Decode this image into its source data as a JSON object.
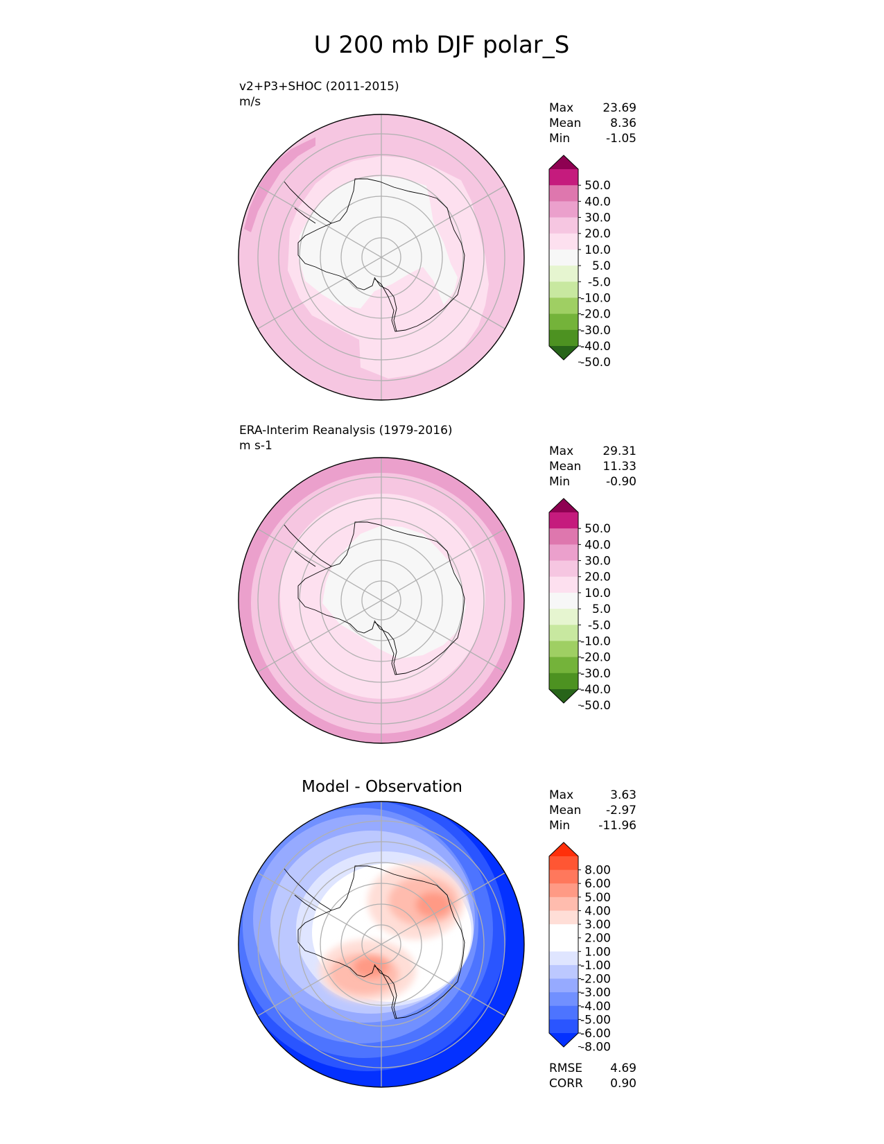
{
  "figure_title": "U 200 mb DJF polar_S",
  "colors": {
    "land_outline": "#000000",
    "grid": "#b0b0b0",
    "pink_scale": [
      "#276419",
      "#4d9221",
      "#7fbc41",
      "#b8e186",
      "#e6f5d0",
      "#f7f7f7",
      "#fde0ef",
      "#f1b6da",
      "#de77ae",
      "#c51b7d",
      "#8e0152"
    ],
    "diff_scale": [
      "#0431ff",
      "#2a55ff",
      "#4d74ff",
      "#7190ff",
      "#96aaff",
      "#bcc8ff",
      "#dfe5ff",
      "#ffffff",
      "#ffded7",
      "#ffbcae",
      "#ff9a85",
      "#ff785c",
      "#ff5633",
      "#ff2f0a"
    ]
  },
  "panels": [
    {
      "id": "test",
      "title_left": "v2+P3+SHOC (2011-2015)",
      "units": "m/s",
      "stats": [
        {
          "label": "Max",
          "value": "23.69"
        },
        {
          "label": "Mean",
          "value": "8.36"
        },
        {
          "label": "Min",
          "value": "-1.05"
        }
      ],
      "colorbar_ticks": [
        "50.0",
        "40.0",
        "30.0",
        "20.0",
        "10.0",
        "5.0",
        "-5.0",
        "-10.0",
        "-20.0",
        "-30.0",
        "-40.0",
        "-50.0"
      ],
      "colorbar_colors_top_to_bottom": [
        "#8e0152",
        "#c51b7d",
        "#de77ae",
        "#eba0cc",
        "#f6c6e1",
        "#fde0ef",
        "#f7f7f7",
        "#e6f5d0",
        "#c8e8a0",
        "#9fcf63",
        "#74b33a",
        "#4d9221",
        "#276419"
      ]
    },
    {
      "id": "reference",
      "title_left": "ERA-Interim Reanalysis (1979-2016)",
      "units": "m s-1",
      "stats": [
        {
          "label": "Max",
          "value": "29.31"
        },
        {
          "label": "Mean",
          "value": "11.33"
        },
        {
          "label": "Min",
          "value": "-0.90"
        }
      ],
      "colorbar_ticks": [
        "50.0",
        "40.0",
        "30.0",
        "20.0",
        "10.0",
        "5.0",
        "-5.0",
        "-10.0",
        "-20.0",
        "-30.0",
        "-40.0",
        "-50.0"
      ],
      "colorbar_colors_top_to_bottom": [
        "#8e0152",
        "#c51b7d",
        "#de77ae",
        "#eba0cc",
        "#f6c6e1",
        "#fde0ef",
        "#f7f7f7",
        "#e6f5d0",
        "#c8e8a0",
        "#9fcf63",
        "#74b33a",
        "#4d9221",
        "#276419"
      ]
    },
    {
      "id": "diff",
      "title_center": "Model - Observation",
      "stats": [
        {
          "label": "Max",
          "value": "3.63"
        },
        {
          "label": "Mean",
          "value": "-2.97"
        },
        {
          "label": "Min",
          "value": "-11.96"
        }
      ],
      "footer_stats": [
        {
          "label": "RMSE",
          "value": "4.69"
        },
        {
          "label": "CORR",
          "value": "0.90"
        }
      ],
      "colorbar_ticks": [
        "8.00",
        "6.00",
        "5.00",
        "4.00",
        "3.00",
        "2.00",
        "1.00",
        "-1.00",
        "-2.00",
        "-3.00",
        "-4.00",
        "-5.00",
        "-6.00",
        "-8.00"
      ],
      "colorbar_colors_top_to_bottom": [
        "#ff2f0a",
        "#ff5633",
        "#ff785c",
        "#ff9a85",
        "#ffbcae",
        "#ffded7",
        "#ffffff",
        "#ffffff",
        "#dfe5ff",
        "#bcc8ff",
        "#96aaff",
        "#7190ff",
        "#4d74ff",
        "#2a55ff",
        "#0431ff"
      ]
    }
  ],
  "chart_data": [
    {
      "type": "heatmap",
      "projection": "south polar stereographic",
      "title": "v2+P3+SHOC (2011-2015)",
      "units": "m/s",
      "variable": "U 200 mb DJF",
      "max": 23.69,
      "mean": 8.36,
      "min": -1.05,
      "levels": [
        -50,
        -40,
        -30,
        -20,
        -10,
        -5,
        5,
        10,
        20,
        30,
        40,
        50
      ],
      "description_rings_m_per_s": [
        {
          "lat_outer": -50,
          "lat_inner": -60,
          "value_range": [
            10,
            20
          ]
        },
        {
          "lat_outer": -60,
          "lat_inner": -70,
          "value_range": [
            5,
            10
          ]
        },
        {
          "lat_outer": -70,
          "lat_inner": -90,
          "value_range": [
            -5,
            5
          ]
        }
      ]
    },
    {
      "type": "heatmap",
      "projection": "south polar stereographic",
      "title": "ERA-Interim Reanalysis (1979-2016)",
      "units": "m s-1",
      "variable": "U 200 mb DJF",
      "max": 29.31,
      "mean": 11.33,
      "min": -0.9,
      "levels": [
        -50,
        -40,
        -30,
        -20,
        -10,
        -5,
        5,
        10,
        20,
        30,
        40,
        50
      ],
      "description_rings_m_per_s": [
        {
          "lat_outer": -50,
          "lat_inner": -53,
          "value_range": [
            20,
            30
          ]
        },
        {
          "lat_outer": -53,
          "lat_inner": -62,
          "value_range": [
            10,
            20
          ]
        },
        {
          "lat_outer": -62,
          "lat_inner": -70,
          "value_range": [
            5,
            10
          ]
        },
        {
          "lat_outer": -70,
          "lat_inner": -90,
          "value_range": [
            -5,
            5
          ]
        }
      ]
    },
    {
      "type": "heatmap",
      "projection": "south polar stereographic",
      "title": "Model - Observation",
      "max": 3.63,
      "mean": -2.97,
      "min": -11.96,
      "rmse": 4.69,
      "corr": 0.9,
      "levels": [
        -8,
        -6,
        -5,
        -4,
        -3,
        -2,
        -1,
        1,
        2,
        3,
        4,
        5,
        6,
        8
      ]
    }
  ]
}
